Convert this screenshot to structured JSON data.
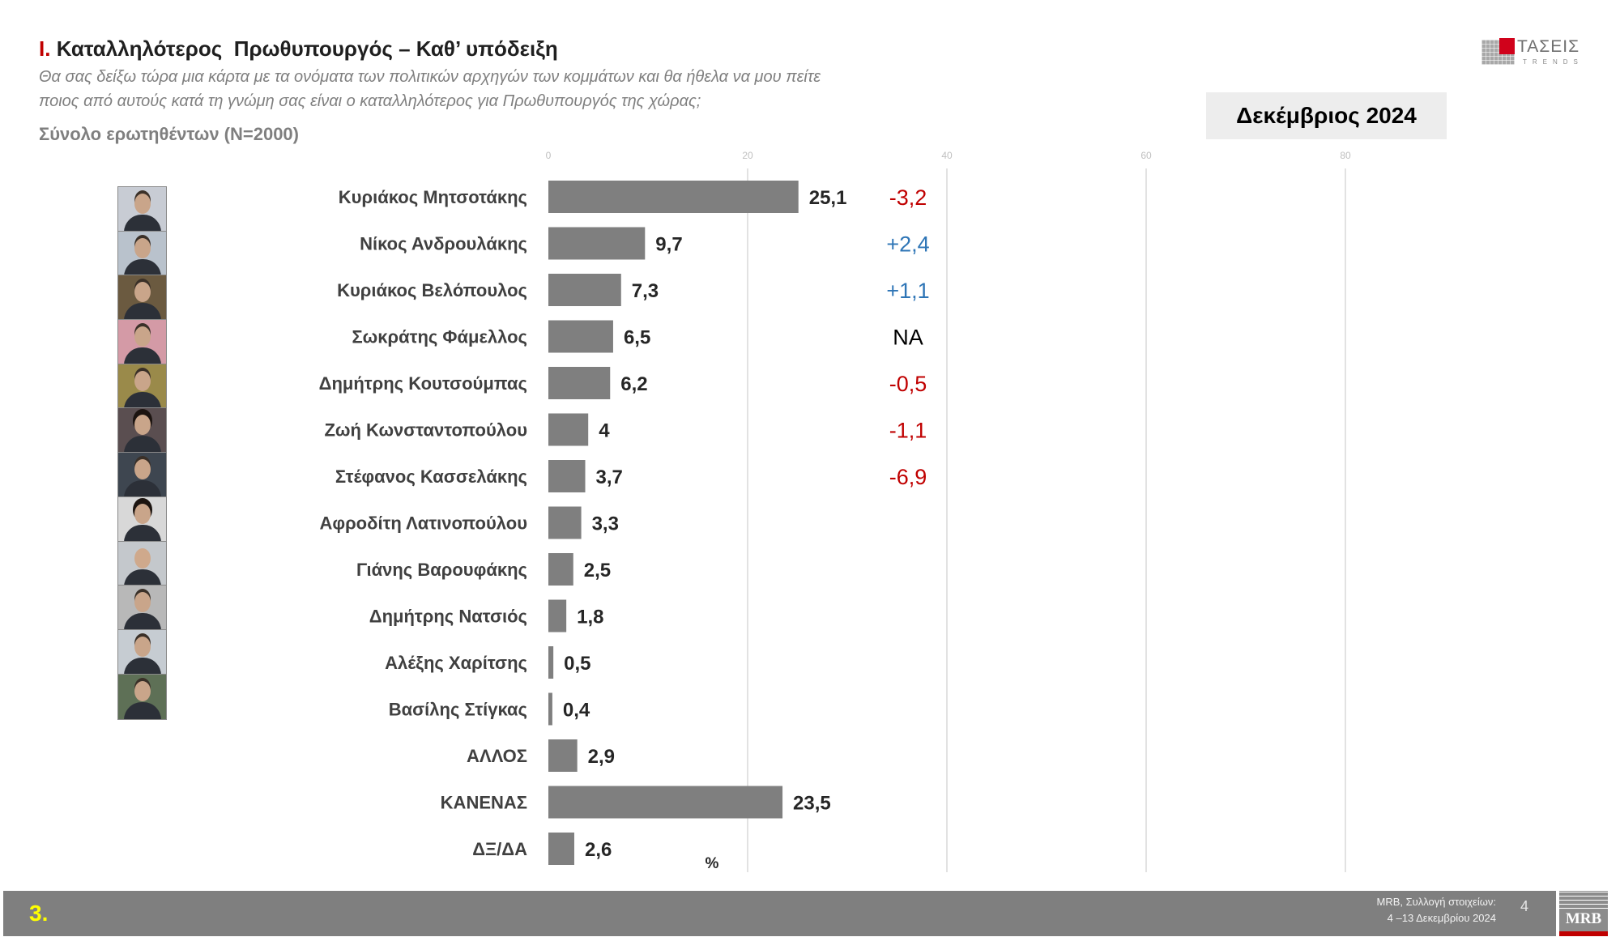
{
  "header": {
    "title_prefix": "I.",
    "title": "Καταλληλότερος  Πρωθυπουργός – Καθ’ υπόδειξη",
    "question_line1": "Θα σας δείξω τώρα μια κάρτα με τα ονόματα των πολιτικών αρχηγών των κομμάτων και θα ήθελα να μου πείτε",
    "question_line2": "ποιος από αυτούς κατά τη γνώμη σας είναι ο καταλληλότερος για Πρωθυπουργός της χώρας;",
    "base": "Σύνολο ερωτηθέντων (N=2000)",
    "period": "Δεκέμβριος 2024"
  },
  "logo": {
    "name": "ΤΑΣΕΙΣ",
    "tagline": "TRENDS"
  },
  "chart_data": {
    "type": "bar",
    "orientation": "horizontal",
    "categories": [
      "Κυριάκος Μητσοτάκης",
      "Νίκος Ανδρουλάκης",
      "Κυριάκος Βελόπουλος",
      "Σωκράτης Φάμελλος",
      "Δημήτρης Κουτσούμπας",
      "Ζωή Κωνσταντοπούλου",
      "Στέφανος Κασσελάκης",
      "Αφροδίτη Λατινοπούλου",
      "Γιάνης Βαρουφάκης",
      "Δημήτρης Νατσιός",
      "Αλέξης Χαρίτσης",
      "Βασίλης Στίγκας",
      "ΑΛΛΟΣ",
      "ΚΑΝΕΝΑΣ",
      "ΔΞ/ΔΑ"
    ],
    "values": [
      25.1,
      9.7,
      7.3,
      6.5,
      6.2,
      4,
      3.7,
      3.3,
      2.5,
      1.8,
      0.5,
      0.4,
      2.9,
      23.5,
      2.6
    ],
    "value_labels": [
      "25,1",
      "9,7",
      "7,3",
      "6,5",
      "6,2",
      "4",
      "3,7",
      "3,3",
      "2,5",
      "1,8",
      "0,5",
      "0,4",
      "2,9",
      "23,5",
      "2,6"
    ],
    "change_labels": [
      "-3,2",
      "+2,4",
      "+1,1",
      "NA",
      "-0,5",
      "-1,1",
      "-6,9"
    ],
    "xticks": [
      0,
      20,
      40,
      60,
      80
    ],
    "xlim": [
      0,
      80
    ],
    "unit_label": "%",
    "grid": true
  },
  "colors": {
    "title_accent": "#c00000",
    "bar": "#7f7f7f",
    "gridline": "#d9d9d9",
    "change_negative": "#c00000",
    "change_positive": "#2e75b6",
    "change_neutral": "#000000",
    "slide_number": "#ffff00",
    "footer_bar": "#7f7f7f"
  },
  "footer": {
    "slide_number": "3.",
    "source_line1": "MRB, Συλλογή στοιχείων:",
    "source_line2": "4 –13 Δεκεμβρίου 2024",
    "page": "4",
    "brand": "MRB"
  }
}
